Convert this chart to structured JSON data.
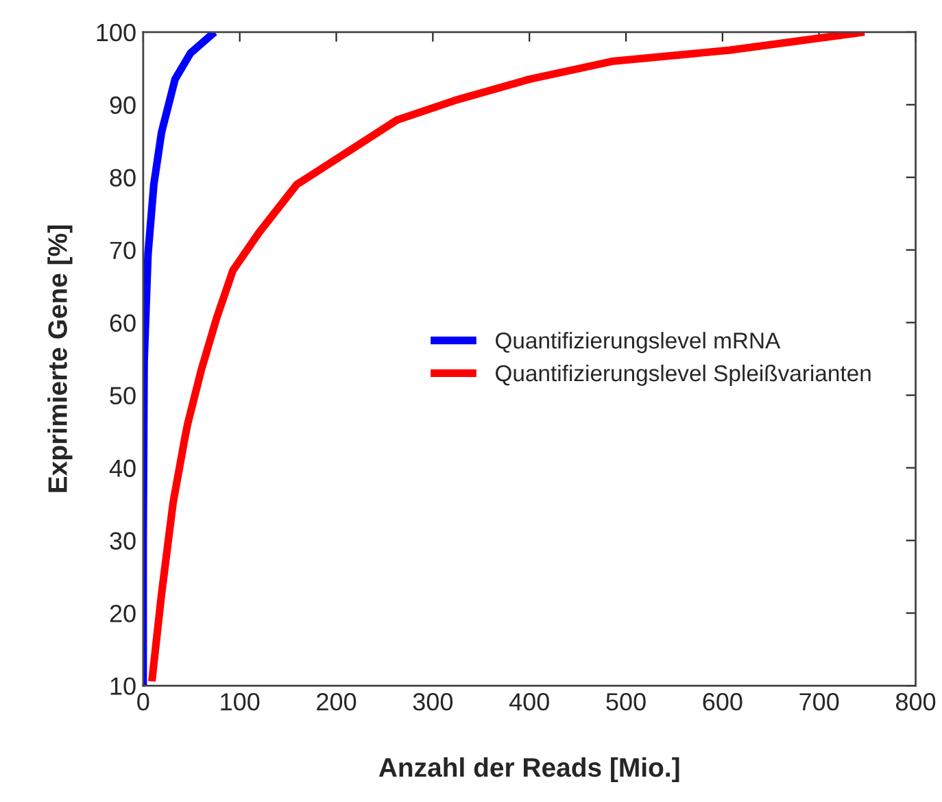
{
  "chart_data": {
    "type": "line",
    "xlabel": "Anzahl der Reads [Mio.]",
    "ylabel": "Exprimierte Gene [%]",
    "xlim": [
      0,
      800
    ],
    "ylim": [
      10,
      100
    ],
    "xticks": [
      0,
      100,
      200,
      300,
      400,
      500,
      600,
      700,
      800
    ],
    "yticks": [
      10,
      20,
      30,
      40,
      50,
      60,
      70,
      80,
      90,
      100
    ],
    "grid": false,
    "legend": "right",
    "marker": "none",
    "line_style": "solid",
    "series": [
      {
        "name": "Quantifizierungslevel mRNA",
        "color": "#0000ff",
        "x": [
          0,
          0,
          1,
          5,
          11,
          19,
          33,
          49,
          74
        ],
        "values": [
          10,
          30,
          54.6,
          69.4,
          79,
          86.2,
          93.5,
          97.1,
          100
        ]
      },
      {
        "name": "Quantifizierungslevel Spleißvarianten",
        "color": "#ff0000",
        "x": [
          9,
          19,
          31,
          43,
          46,
          60,
          76,
          93,
          120,
          159,
          214,
          263,
          323,
          400,
          487,
          607,
          747
        ],
        "values": [
          10.6,
          22.6,
          35.2,
          44,
          46,
          53.4,
          60.6,
          67.2,
          72.4,
          79,
          83.7,
          87.9,
          90.6,
          93.5,
          96,
          97.5,
          100
        ]
      }
    ]
  }
}
